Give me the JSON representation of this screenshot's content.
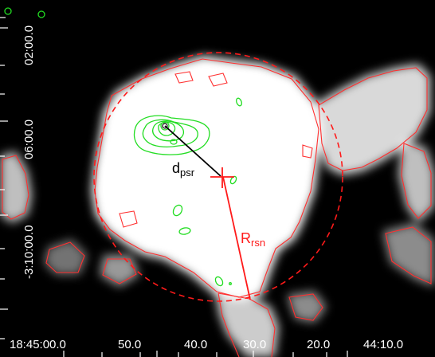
{
  "colors": {
    "background": "#000000",
    "emission": "#ffffff",
    "contours": "#ff3030",
    "radio_contours": "#22dd22",
    "markers": "#ff1a1a",
    "pulsar_line": "#000000",
    "ticks": "#ffffff"
  },
  "axes": {
    "ra_labels": [
      "18:45:00.0",
      "50.0",
      "40.0",
      "30.0",
      "20.0",
      "44:10.0"
    ],
    "dec_labels": [
      "02:00.0",
      "06:00.0",
      "-3:10:00.0"
    ]
  },
  "annotations": {
    "d_psr_main": "d",
    "d_psr_sub": "psr",
    "r_rsn_main": "R",
    "r_rsn_sub": "rsn"
  },
  "icons": {
    "center": "red-cross-marker",
    "pulsar": "green-circle-marker"
  }
}
